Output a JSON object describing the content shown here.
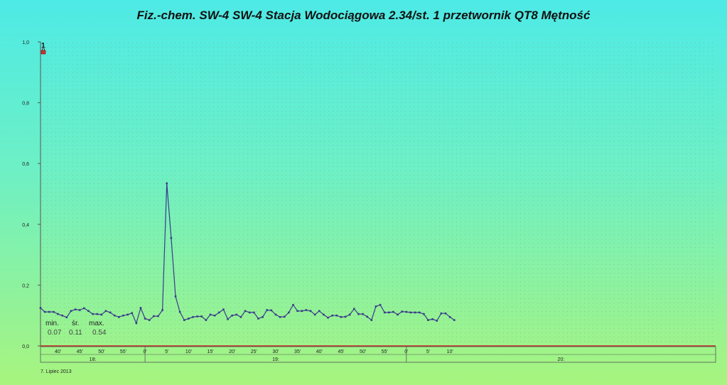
{
  "title": "Fiz.-chem. SW-4 SW-4 Stacja Wodociągowa 2.34/st. 1 przetwornik QT8 Mętność",
  "footer_date": "7. Lipiec 2013",
  "colors": {
    "line": "#3a3a8c",
    "axis": "#cc2020",
    "grid": "#8aa"
  },
  "series_marker": {
    "number": "1",
    "icon": "lock-icon"
  },
  "stats": {
    "min_label": "min.",
    "avg_label": "śr.",
    "max_label": "max.",
    "min": "0.07",
    "avg": "0.11",
    "max": "0.54"
  },
  "chart_data": {
    "type": "line",
    "title": "Fiz.-chem. SW-4 SW-4 Stacja Wodociągowa 2.34/st. 1 przetwornik QT8 Mętność",
    "ylim": [
      0,
      1
    ],
    "y_ticks": [
      "0,0",
      "0,2",
      "0,4",
      "0,6",
      "0,8",
      "1,0"
    ],
    "x_range_minutes": [
      "17:36",
      "20:11"
    ],
    "x_minute_ticks": [
      {
        "t": "17:40",
        "label": "40'"
      },
      {
        "t": "17:45",
        "label": "45'"
      },
      {
        "t": "17:50",
        "label": "50'"
      },
      {
        "t": "17:55",
        "label": "55'"
      },
      {
        "t": "18:00",
        "label": "0'"
      },
      {
        "t": "18:05",
        "label": "5'"
      },
      {
        "t": "18:10",
        "label": "10'"
      },
      {
        "t": "18:15",
        "label": "15'"
      },
      {
        "t": "18:20",
        "label": "20'"
      },
      {
        "t": "18:25",
        "label": "25'"
      },
      {
        "t": "18:30",
        "label": "30'"
      },
      {
        "t": "18:35",
        "label": "35'"
      },
      {
        "t": "18:40",
        "label": "40'"
      },
      {
        "t": "18:45",
        "label": "45'"
      },
      {
        "t": "18:50",
        "label": "50'"
      },
      {
        "t": "18:55",
        "label": "55'"
      },
      {
        "t": "19:00",
        "label": "0'"
      },
      {
        "t": "19:05",
        "label": "5'"
      },
      {
        "t": "19:10",
        "label": "10'"
      }
    ],
    "x_hour_blocks": [
      {
        "from": "17:36",
        "to": "18:00",
        "label": "18:"
      },
      {
        "from": "18:00",
        "to": "19:00",
        "label": "19:"
      },
      {
        "from": "19:00",
        "to": "20:11",
        "label": "20:"
      }
    ],
    "grid": true,
    "series": [
      {
        "x": [
          "17:36",
          "17:37",
          "17:38",
          "17:39",
          "17:40",
          "17:41",
          "17:42",
          "17:43",
          "17:44",
          "17:45",
          "17:46",
          "17:47",
          "17:48",
          "17:49",
          "17:50",
          "17:51",
          "17:52",
          "17:53",
          "17:54",
          "17:55",
          "17:56",
          "17:57",
          "17:58",
          "17:59",
          "18:00",
          "18:01",
          "18:02",
          "18:03",
          "18:04",
          "18:05",
          "18:06",
          "18:07",
          "18:08",
          "18:09",
          "18:10",
          "18:11",
          "18:12",
          "18:13",
          "18:14",
          "18:15",
          "18:16",
          "18:17",
          "18:18",
          "18:19",
          "18:20",
          "18:21",
          "18:22",
          "18:23",
          "18:24",
          "18:25",
          "18:26",
          "18:27",
          "18:28",
          "18:29",
          "18:30",
          "18:31",
          "18:32",
          "18:33",
          "18:34",
          "18:35",
          "18:36",
          "18:37",
          "18:38",
          "18:39",
          "18:40",
          "18:41",
          "18:42",
          "18:43",
          "18:44",
          "18:45",
          "18:46",
          "18:47",
          "18:48",
          "18:49",
          "18:50",
          "18:51",
          "18:52",
          "18:53",
          "18:54",
          "18:55",
          "18:56",
          "18:57",
          "18:58",
          "18:59",
          "19:00",
          "19:01",
          "19:02",
          "19:03",
          "19:04",
          "19:05",
          "19:06",
          "19:07",
          "19:08",
          "19:09",
          "19:10",
          "19:11"
        ],
        "values": [
          0.125,
          0.112,
          0.112,
          0.112,
          0.105,
          0.1,
          0.094,
          0.115,
          0.12,
          0.118,
          0.124,
          0.115,
          0.105,
          0.105,
          0.103,
          0.115,
          0.11,
          0.1,
          0.095,
          0.1,
          0.103,
          0.108,
          0.075,
          0.125,
          0.09,
          0.085,
          0.098,
          0.098,
          0.118,
          0.535,
          0.355,
          0.163,
          0.112,
          0.085,
          0.09,
          0.095,
          0.097,
          0.097,
          0.085,
          0.103,
          0.1,
          0.11,
          0.12,
          0.088,
          0.1,
          0.103,
          0.095,
          0.115,
          0.11,
          0.11,
          0.09,
          0.095,
          0.118,
          0.117,
          0.103,
          0.095,
          0.096,
          0.11,
          0.135,
          0.115,
          0.115,
          0.118,
          0.115,
          0.103,
          0.115,
          0.103,
          0.093,
          0.1,
          0.1,
          0.095,
          0.096,
          0.103,
          0.122,
          0.105,
          0.105,
          0.096,
          0.085,
          0.13,
          0.135,
          0.11,
          0.11,
          0.112,
          0.103,
          0.113,
          0.112,
          0.11,
          0.11,
          0.11,
          0.105,
          0.085,
          0.088,
          0.083,
          0.107,
          0.107,
          0.095,
          0.085
        ]
      }
    ]
  }
}
